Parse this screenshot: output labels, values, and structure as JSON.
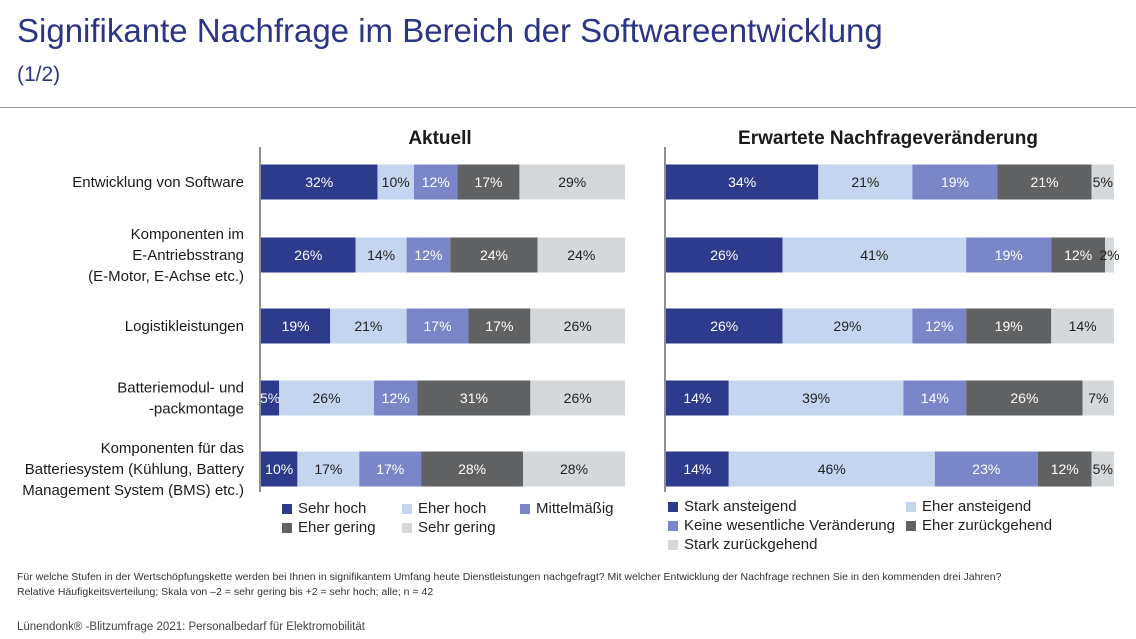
{
  "header": {
    "title": "Signifikante Nachfrage im Bereich der Softwareentwicklung",
    "subtitle": "(1/2)"
  },
  "chart_data": [
    {
      "type": "bar",
      "orientation": "horizontal-stacked-100",
      "title": "Aktuell",
      "categories": [
        "Entwicklung von Software",
        "Komponenten im E-Antriebsstrang (E-Motor, E-Achse etc.)",
        "Logistikleistungen",
        "Batteriemodul- und -packmontage",
        "Komponenten für das Batteriesystem (Kühlung, Battery Management System (BMS) etc.)"
      ],
      "category_lines": [
        [
          "Entwicklung von Software"
        ],
        [
          "Komponenten im",
          "E-Antriebsstrang",
          "(E-Motor, E-Achse etc.)"
        ],
        [
          "Logistikleistungen"
        ],
        [
          "Batteriemodul- und",
          "-packmontage"
        ],
        [
          "Komponenten für das",
          "Batteriesystem (Kühlung, Battery",
          "Management System (BMS) etc.)"
        ]
      ],
      "series": [
        {
          "name": "Sehr hoch",
          "color": "#2e3a8c",
          "values": [
            32,
            26,
            19,
            5,
            10
          ]
        },
        {
          "name": "Eher hoch",
          "color": "#c5d5f0",
          "values": [
            10,
            14,
            21,
            26,
            17
          ]
        },
        {
          "name": "Mittelmäßig",
          "color": "#7b86c8",
          "values": [
            12,
            12,
            17,
            12,
            17
          ]
        },
        {
          "name": "Eher gering",
          "color": "#5f6163",
          "values": [
            17,
            24,
            17,
            31,
            28
          ]
        },
        {
          "name": "Sehr gering",
          "color": "#d5d8da",
          "values": [
            29,
            24,
            26,
            26,
            28
          ]
        }
      ],
      "xlim": [
        0,
        100
      ]
    },
    {
      "type": "bar",
      "orientation": "horizontal-stacked-100",
      "title": "Erwartete Nachfrageveränderung",
      "categories": [
        "Entwicklung von Software",
        "Komponenten im E-Antriebsstrang (E-Motor, E-Achse etc.)",
        "Logistikleistungen",
        "Batteriemodul- und -packmontage",
        "Komponenten für das Batteriesystem (Kühlung, Battery Management System (BMS) etc.)"
      ],
      "series": [
        {
          "name": "Stark ansteigend",
          "color": "#2e3a8c",
          "values": [
            34,
            26,
            26,
            14,
            14
          ]
        },
        {
          "name": "Eher ansteigend",
          "color": "#c5d5f0",
          "values": [
            21,
            41,
            29,
            39,
            46
          ]
        },
        {
          "name": "Keine wesentliche Veränderung",
          "color": "#7b86c8",
          "values": [
            19,
            19,
            12,
            14,
            23
          ]
        },
        {
          "name": "Eher zurückgehend",
          "color": "#5f6163",
          "values": [
            21,
            12,
            19,
            26,
            12
          ]
        },
        {
          "name": "Stark zurückgehend",
          "color": "#d5d8da",
          "values": [
            5,
            2,
            14,
            7,
            5
          ]
        }
      ],
      "xlim": [
        0,
        100
      ]
    }
  ],
  "footnote": {
    "line1": "Für welche Stufen in der Wertschöpfungskette werden bei Ihnen in signifikantem Umfang heute Dienstleistungen nachgefragt? Mit welcher Entwicklung der Nachfrage rechnen Sie in den kommenden drei Jahren?",
    "line2": "Relative Häufigkeitsverteilung; Skala von –2 = sehr gering bis +2 = sehr hoch; alle; n = 42"
  },
  "source": "Lünendonk® -Blitzumfrage 2021: Personalbedarf für Elektromobilität"
}
